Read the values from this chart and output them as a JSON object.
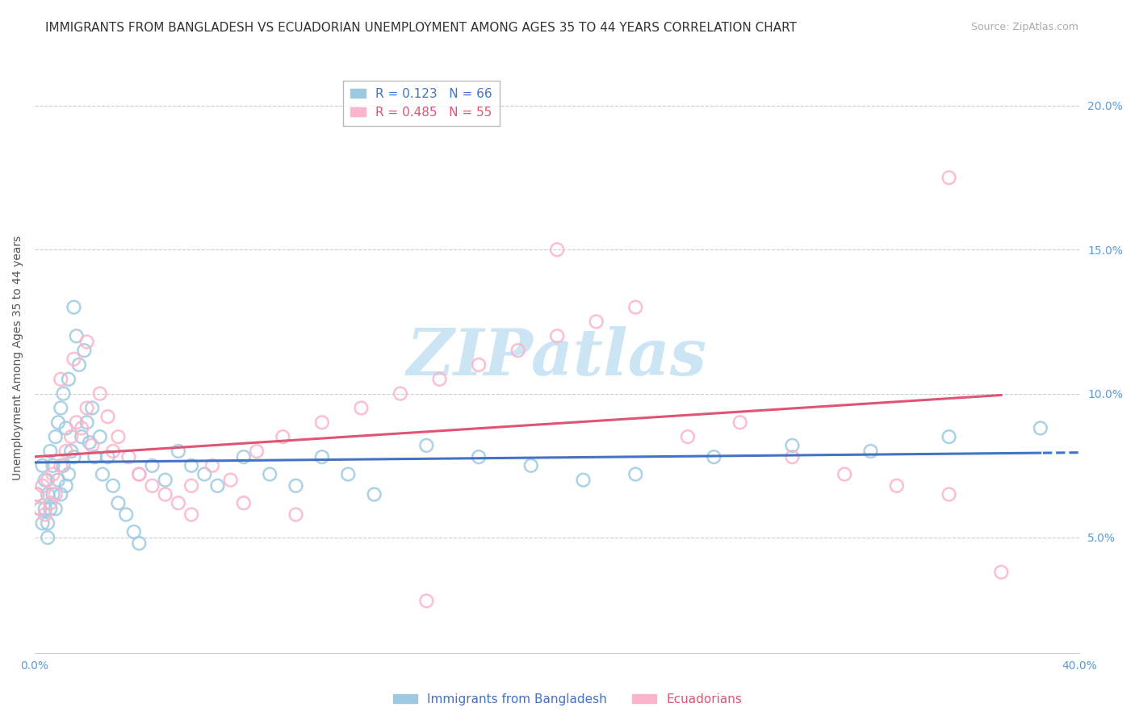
{
  "title": "IMMIGRANTS FROM BANGLADESH VS ECUADORIAN UNEMPLOYMENT AMONG AGES 35 TO 44 YEARS CORRELATION CHART",
  "source": "Source: ZipAtlas.com",
  "ylabel": "Unemployment Among Ages 35 to 44 years",
  "xlim": [
    0.0,
    0.4
  ],
  "ylim": [
    0.01,
    0.215
  ],
  "yticks": [
    0.05,
    0.1,
    0.15,
    0.2
  ],
  "ytick_labels": [
    "5.0%",
    "10.0%",
    "15.0%",
    "20.0%"
  ],
  "watermark": "ZIPatlas",
  "legend_r1": "R = 0.123   N = 66",
  "legend_r2": "R = 0.485   N = 55",
  "legend_bottom1": "Immigrants from Bangladesh",
  "legend_bottom2": "Ecuadorians",
  "blue_scatter_x": [
    0.001,
    0.002,
    0.003,
    0.003,
    0.004,
    0.004,
    0.005,
    0.005,
    0.005,
    0.006,
    0.006,
    0.007,
    0.007,
    0.008,
    0.008,
    0.009,
    0.009,
    0.01,
    0.01,
    0.011,
    0.011,
    0.012,
    0.012,
    0.013,
    0.013,
    0.014,
    0.015,
    0.015,
    0.016,
    0.017,
    0.018,
    0.019,
    0.02,
    0.021,
    0.022,
    0.023,
    0.025,
    0.026,
    0.028,
    0.03,
    0.032,
    0.035,
    0.038,
    0.04,
    0.045,
    0.05,
    0.055,
    0.06,
    0.065,
    0.07,
    0.08,
    0.09,
    0.1,
    0.11,
    0.12,
    0.13,
    0.15,
    0.17,
    0.19,
    0.21,
    0.23,
    0.26,
    0.29,
    0.32,
    0.35,
    0.385
  ],
  "blue_scatter_y": [
    0.065,
    0.06,
    0.075,
    0.055,
    0.07,
    0.06,
    0.065,
    0.055,
    0.05,
    0.08,
    0.06,
    0.075,
    0.065,
    0.085,
    0.06,
    0.09,
    0.07,
    0.095,
    0.065,
    0.1,
    0.075,
    0.088,
    0.068,
    0.105,
    0.072,
    0.08,
    0.13,
    0.078,
    0.12,
    0.11,
    0.085,
    0.115,
    0.09,
    0.083,
    0.095,
    0.078,
    0.085,
    0.072,
    0.078,
    0.068,
    0.062,
    0.058,
    0.052,
    0.048,
    0.075,
    0.07,
    0.08,
    0.075,
    0.072,
    0.068,
    0.078,
    0.072,
    0.068,
    0.078,
    0.072,
    0.065,
    0.082,
    0.078,
    0.075,
    0.07,
    0.072,
    0.078,
    0.082,
    0.08,
    0.085,
    0.088
  ],
  "pink_scatter_x": [
    0.001,
    0.002,
    0.003,
    0.004,
    0.005,
    0.006,
    0.007,
    0.008,
    0.01,
    0.012,
    0.014,
    0.016,
    0.018,
    0.02,
    0.022,
    0.025,
    0.028,
    0.032,
    0.036,
    0.04,
    0.045,
    0.05,
    0.055,
    0.06,
    0.068,
    0.075,
    0.085,
    0.095,
    0.11,
    0.125,
    0.14,
    0.155,
    0.17,
    0.185,
    0.2,
    0.215,
    0.23,
    0.25,
    0.27,
    0.29,
    0.31,
    0.33,
    0.35,
    0.37,
    0.01,
    0.015,
    0.02,
    0.03,
    0.04,
    0.06,
    0.08,
    0.1,
    0.15,
    0.2,
    0.35
  ],
  "pink_scatter_y": [
    0.065,
    0.06,
    0.068,
    0.058,
    0.07,
    0.062,
    0.072,
    0.065,
    0.075,
    0.08,
    0.085,
    0.09,
    0.088,
    0.095,
    0.082,
    0.1,
    0.092,
    0.085,
    0.078,
    0.072,
    0.068,
    0.065,
    0.062,
    0.058,
    0.075,
    0.07,
    0.08,
    0.085,
    0.09,
    0.095,
    0.1,
    0.105,
    0.11,
    0.115,
    0.12,
    0.125,
    0.13,
    0.085,
    0.09,
    0.078,
    0.072,
    0.068,
    0.065,
    0.038,
    0.105,
    0.112,
    0.118,
    0.08,
    0.072,
    0.068,
    0.062,
    0.058,
    0.028,
    0.15,
    0.175
  ],
  "blue_line_color": "#4472c4",
  "pink_line_color": "#e05575",
  "scatter_blue_color": "#9ecae1",
  "scatter_pink_color": "#fbb4c9",
  "background_color": "#ffffff",
  "grid_color": "#cccccc",
  "watermark_color": "#cce5f5",
  "title_fontsize": 11,
  "axis_label_fontsize": 10,
  "tick_fontsize": 10,
  "tick_color": "#5b9bd5"
}
